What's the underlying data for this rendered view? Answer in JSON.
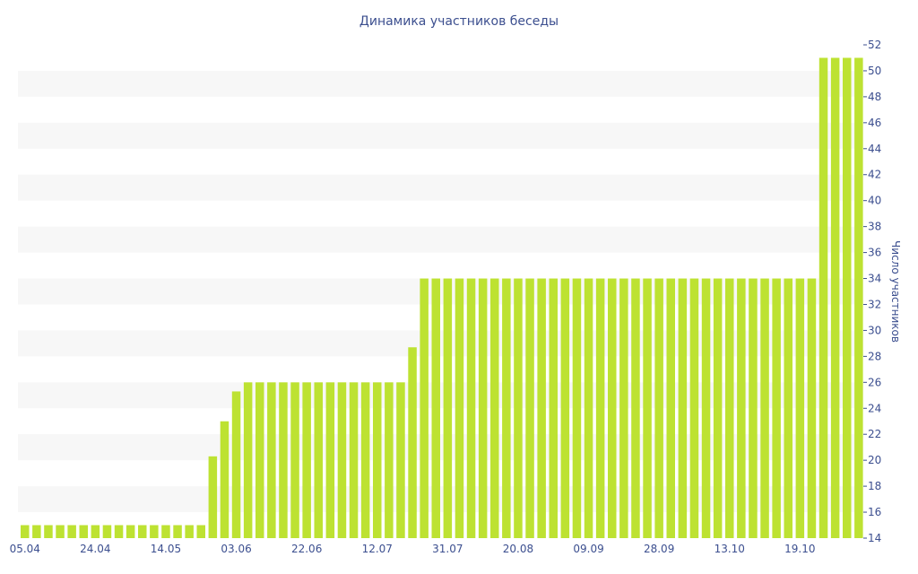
{
  "chart_data": {
    "type": "bar",
    "title": "Динамика участников беседы",
    "ylabel": "Число участников",
    "xlabel": "",
    "ylim": [
      14,
      52
    ],
    "y_ticks": [
      14,
      16,
      18,
      20,
      22,
      24,
      26,
      28,
      30,
      32,
      34,
      36,
      38,
      40,
      42,
      44,
      46,
      48,
      50,
      52
    ],
    "y_axis_position": "right",
    "bar_color": "#bde232",
    "band_color": "#f7f7f7",
    "text_color": "#3c4f8f",
    "x_tick_labels": [
      "05.04",
      "24.04",
      "14.05",
      "03.06",
      "22.06",
      "12.07",
      "31.07",
      "20.08",
      "09.09",
      "28.09",
      "13.10",
      "19.10"
    ],
    "x_tick_bar_index": [
      0,
      6,
      12,
      18,
      24,
      30,
      36,
      42,
      48,
      54,
      60,
      66
    ],
    "values": [
      15,
      15,
      15,
      15,
      15,
      15,
      15,
      15,
      15,
      15,
      15,
      15,
      15,
      15,
      15,
      15,
      20.3,
      23,
      25.3,
      26,
      26,
      26,
      26,
      26,
      26,
      26,
      26,
      26,
      26,
      26,
      26,
      26,
      26,
      28.7,
      34,
      34,
      34,
      34,
      34,
      34,
      34,
      34,
      34,
      34,
      34,
      34,
      34,
      34,
      34,
      34,
      34,
      34,
      34,
      34,
      34,
      34,
      34,
      34,
      34,
      34,
      34,
      34,
      34,
      34,
      34,
      34,
      34,
      34,
      51,
      51,
      51,
      51
    ]
  }
}
